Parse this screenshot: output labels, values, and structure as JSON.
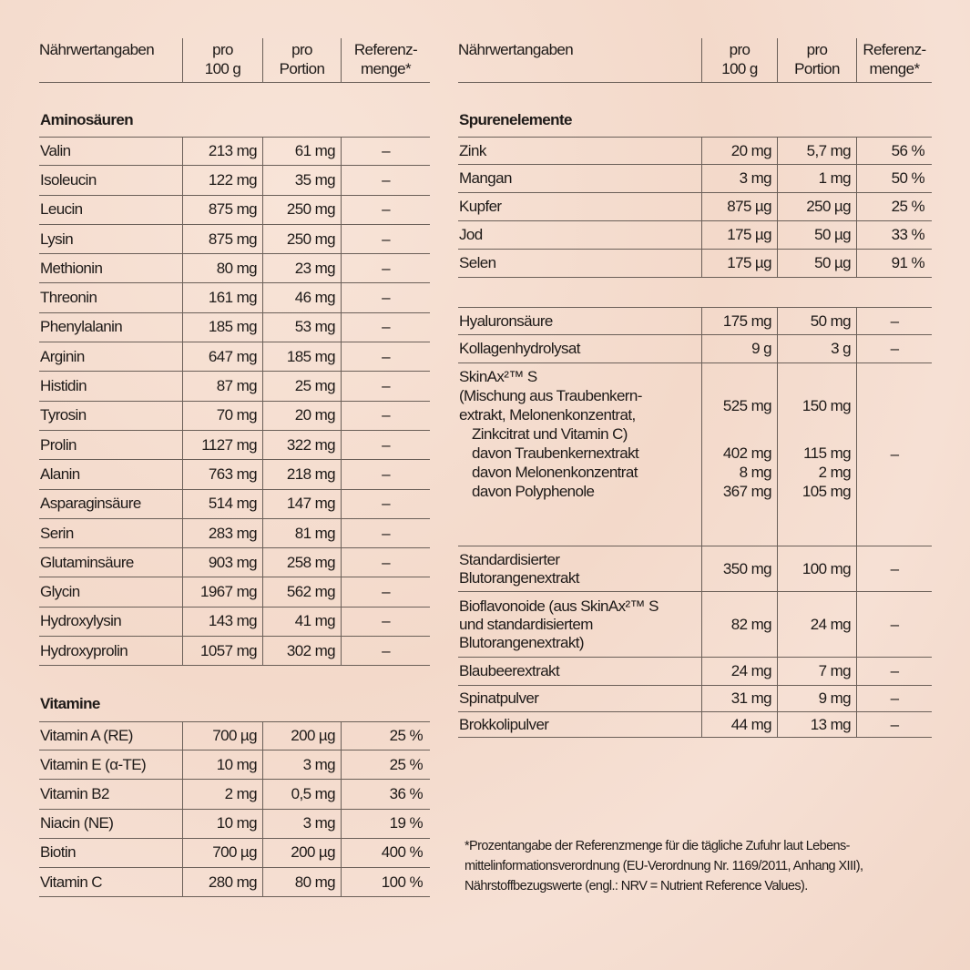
{
  "header": {
    "name": "Nährwertangaben",
    "per100": "pro\n100 g",
    "perPortion": "pro\nPortion",
    "reference": "Referenz-\nmenge*"
  },
  "left": {
    "sections": [
      {
        "title": "Aminosäuren",
        "rows": [
          {
            "name": "Valin",
            "p100": "213 mg",
            "portion": "61 mg",
            "ref": "–"
          },
          {
            "name": "Isoleucin",
            "p100": "122 mg",
            "portion": "35 mg",
            "ref": "–"
          },
          {
            "name": "Leucin",
            "p100": "875 mg",
            "portion": "250 mg",
            "ref": "–"
          },
          {
            "name": "Lysin",
            "p100": "875 mg",
            "portion": "250 mg",
            "ref": "–"
          },
          {
            "name": "Methionin",
            "p100": "80 mg",
            "portion": "23 mg",
            "ref": "–"
          },
          {
            "name": "Threonin",
            "p100": "161 mg",
            "portion": "46 mg",
            "ref": "–"
          },
          {
            "name": "Phenylalanin",
            "p100": "185 mg",
            "portion": "53 mg",
            "ref": "–"
          },
          {
            "name": "Arginin",
            "p100": "647 mg",
            "portion": "185 mg",
            "ref": "–"
          },
          {
            "name": "Histidin",
            "p100": "87 mg",
            "portion": "25 mg",
            "ref": "–"
          },
          {
            "name": "Tyrosin",
            "p100": "70 mg",
            "portion": "20 mg",
            "ref": "–"
          },
          {
            "name": "Prolin",
            "p100": "1127 mg",
            "portion": "322 mg",
            "ref": "–"
          },
          {
            "name": "Alanin",
            "p100": "763 mg",
            "portion": "218 mg",
            "ref": "–"
          },
          {
            "name": "Asparaginsäure",
            "p100": "514 mg",
            "portion": "147 mg",
            "ref": "–"
          },
          {
            "name": "Serin",
            "p100": "283 mg",
            "portion": "81 mg",
            "ref": "–"
          },
          {
            "name": "Glutaminsäure",
            "p100": "903 mg",
            "portion": "258 mg",
            "ref": "–"
          },
          {
            "name": "Glycin",
            "p100": "1967 mg",
            "portion": "562 mg",
            "ref": "–"
          },
          {
            "name": "Hydroxylysin",
            "p100": "143 mg",
            "portion": "41 mg",
            "ref": "–"
          },
          {
            "name": "Hydroxyprolin",
            "p100": "1057 mg",
            "portion": "302 mg",
            "ref": "–"
          }
        ]
      },
      {
        "title": "Vitamine",
        "rows": [
          {
            "name": "Vitamin A (RE)",
            "p100": "700 µg",
            "portion": "200 µg",
            "ref": "25 %"
          },
          {
            "name": "Vitamin E (α-TE)",
            "p100": "10 mg",
            "portion": "3 mg",
            "ref": "25 %"
          },
          {
            "name": "Vitamin B2",
            "p100": "2 mg",
            "portion": "0,5 mg",
            "ref": "36 %"
          },
          {
            "name": "Niacin (NE)",
            "p100": "10 mg",
            "portion": "3 mg",
            "ref": "19 %"
          },
          {
            "name": "Biotin",
            "p100": "700 µg",
            "portion": "200 µg",
            "ref": "400 %"
          },
          {
            "name": "Vitamin C",
            "p100": "280 mg",
            "portion": "80 mg",
            "ref": "100 %"
          }
        ]
      }
    ]
  },
  "right": {
    "sections": [
      {
        "title": "Spurenelemente",
        "rows": [
          {
            "name": "Zink",
            "p100": "20 mg",
            "portion": "5,7 mg",
            "ref": "56 %"
          },
          {
            "name": "Mangan",
            "p100": "3 mg",
            "portion": "1 mg",
            "ref": "50 %"
          },
          {
            "name": "Kupfer",
            "p100": "875 µg",
            "portion": "250 µg",
            "ref": "25 %"
          },
          {
            "name": "Jod",
            "p100": "175 µg",
            "portion": "50 µg",
            "ref": "33 %"
          },
          {
            "name": "Selen",
            "p100": "175 µg",
            "portion": "50 µg",
            "ref": "91 %"
          }
        ]
      },
      {
        "title": "",
        "rows": [
          {
            "name": "Hyaluronsäure",
            "p100": "175 mg",
            "portion": "50 mg",
            "ref": "–"
          },
          {
            "name": "Kollagenhydrolysat",
            "p100": "9 g",
            "portion": "3 g",
            "ref": "–"
          },
          {
            "lines": [
              {
                "name": "SkinAx²™ S",
                "p100": "",
                "portion": ""
              },
              {
                "name": "(Mischung aus Traubenkern-",
                "p100": "",
                "portion": ""
              },
              {
                "name": "extrakt, Melonenkonzentrat,",
                "p100": "525 mg",
                "portion": "150 mg"
              },
              {
                "name": "Zinkcitrat und Vitamin C)",
                "p100": "",
                "portion": "",
                "sub": true
              },
              {
                "name": "davon Traubenkernextrakt",
                "p100": "402 mg",
                "portion": "115 mg",
                "sub": true
              },
              {
                "name": "davon Melonenkonzentrat",
                "p100": "8 mg",
                "portion": "2 mg",
                "sub": true
              },
              {
                "name": "davon Polyphenole",
                "p100": "367 mg",
                "portion": "105 mg",
                "sub": true
              }
            ],
            "ref": "–"
          },
          {
            "name": "Standardisierter\nBlutorangenextrakt",
            "p100": "350 mg",
            "portion": "100 mg",
            "ref": "–"
          },
          {
            "name": "Bioflavonoide (aus SkinAx²™ S\nund standardisiertem\nBlutorangenextrakt)",
            "p100": "82 mg",
            "portion": "24 mg",
            "ref": "–"
          },
          {
            "name": "Blaubeerextrakt",
            "p100": "24 mg",
            "portion": "7 mg",
            "ref": "–"
          },
          {
            "name": "Spinatpulver",
            "p100": "31 mg",
            "portion": "9 mg",
            "ref": "–"
          },
          {
            "name": "Brokkolipulver",
            "p100": "44 mg",
            "portion": "13 mg",
            "ref": "–"
          }
        ]
      }
    ]
  },
  "footnote": "*Prozentangabe der Referenzmenge für die tägliche Zufuhr laut Lebens-\nmittelinformationsverordnung (EU-Verordnung Nr. 1169/2011, Anhang XIII),\nNährstoffbezugswerte (engl.: NRV = Nutrient Reference Values)."
}
